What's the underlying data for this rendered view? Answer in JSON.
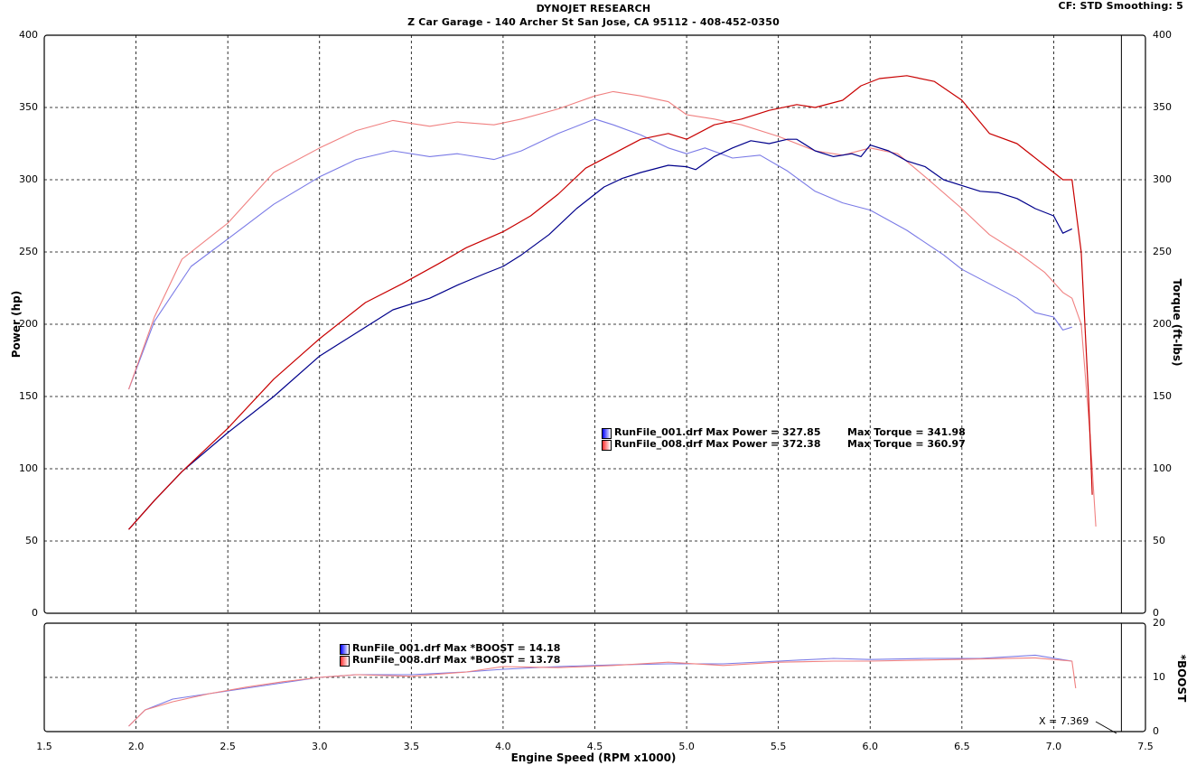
{
  "header": {
    "title": "DYNOJET RESEARCH",
    "subtitle": "Z Car Garage - 140 Archer St San Jose, CA 95112 - 408-452-0350",
    "settings": "CF: STD   Smoothing: 5"
  },
  "chart_data": [
    {
      "type": "line",
      "xlabel": "Engine Speed (RPM x1000)",
      "ylabel": "Power (hp)",
      "y2label": "Torque (ft-lbs)",
      "xlim": [
        1.5,
        7.5
      ],
      "ylim": [
        0,
        400
      ],
      "y2lim": [
        0,
        400
      ],
      "xticks": [
        "1.5",
        "2.0",
        "2.5",
        "3.0",
        "3.5",
        "4.0",
        "4.5",
        "5.0",
        "5.5",
        "6.0",
        "6.5",
        "7.0",
        "7.5"
      ],
      "yticks": [
        "0",
        "50",
        "100",
        "150",
        "200",
        "250",
        "300",
        "350",
        "400"
      ],
      "grid": true,
      "cursor_x": 7.369,
      "colors": {
        "run1_power": "#00008b",
        "run1_torque": "#7a7ae6",
        "run8_power": "#c80000",
        "run8_torque": "#f08080"
      },
      "legend": [
        {
          "swatch": "#0000ff",
          "run": "RunFile_001.drf",
          "max_power": "Max Power = 327.85",
          "max_torque": "Max Torque = 341.98"
        },
        {
          "swatch": "#ff3030",
          "run": "RunFile_008.drf",
          "max_power": "Max Power = 372.38",
          "max_torque": "Max Torque = 360.97"
        }
      ],
      "series": [
        {
          "color": "#00008b",
          "axis": "left",
          "x": [
            1.96,
            2.1,
            2.25,
            2.5,
            2.75,
            3.0,
            3.25,
            3.4,
            3.6,
            3.75,
            3.9,
            4.0,
            4.1,
            4.25,
            4.4,
            4.55,
            4.65,
            4.75,
            4.9,
            5.0,
            5.05,
            5.15,
            5.25,
            5.35,
            5.45,
            5.55,
            5.6,
            5.7,
            5.8,
            5.9,
            5.95,
            6.0,
            6.1,
            6.2,
            6.3,
            6.4,
            6.5,
            6.6,
            6.7,
            6.8,
            6.9,
            7.0,
            7.05,
            7.1
          ],
          "values": [
            58,
            78,
            98,
            125,
            150,
            178,
            198,
            210,
            218,
            227,
            235,
            240,
            248,
            262,
            280,
            295,
            301,
            305,
            310,
            309,
            307,
            316,
            322,
            327,
            325,
            328,
            328,
            320,
            316,
            318,
            316,
            324,
            320,
            313,
            309,
            300,
            296,
            292,
            291,
            287,
            280,
            275,
            263,
            266
          ]
        },
        {
          "color": "#7a7ae6",
          "axis": "right",
          "x": [
            1.96,
            2.1,
            2.3,
            2.5,
            2.75,
            3.0,
            3.2,
            3.4,
            3.6,
            3.75,
            3.95,
            4.1,
            4.3,
            4.5,
            4.6,
            4.75,
            4.9,
            5.0,
            5.1,
            5.25,
            5.4,
            5.55,
            5.7,
            5.85,
            6.0,
            6.2,
            6.4,
            6.5,
            6.65,
            6.8,
            6.9,
            7.0,
            7.05,
            7.1
          ],
          "values": [
            155,
            202,
            240,
            259,
            283,
            302,
            314,
            320,
            316,
            318,
            314,
            320,
            332,
            342,
            338,
            331,
            322,
            318,
            322,
            315,
            317,
            306,
            292,
            284,
            279,
            265,
            248,
            238,
            228,
            218,
            208,
            205,
            196,
            198
          ]
        },
        {
          "color": "#c80000",
          "axis": "left",
          "x": [
            1.96,
            2.1,
            2.25,
            2.5,
            2.75,
            3.0,
            3.25,
            3.45,
            3.65,
            3.8,
            4.0,
            4.15,
            4.3,
            4.45,
            4.6,
            4.75,
            4.9,
            5.0,
            5.15,
            5.3,
            5.45,
            5.6,
            5.7,
            5.85,
            5.95,
            6.05,
            6.2,
            6.35,
            6.5,
            6.65,
            6.8,
            6.95,
            7.05,
            7.1,
            7.15,
            7.19,
            7.21
          ],
          "values": [
            58,
            78,
            98,
            128,
            162,
            190,
            215,
            228,
            242,
            253,
            264,
            275,
            290,
            308,
            318,
            328,
            332,
            328,
            338,
            342,
            348,
            352,
            350,
            355,
            365,
            370,
            372,
            368,
            355,
            332,
            325,
            310,
            300,
            300,
            250,
            150,
            82
          ]
        },
        {
          "color": "#f08080",
          "axis": "right",
          "x": [
            1.96,
            2.1,
            2.25,
            2.5,
            2.75,
            3.0,
            3.2,
            3.4,
            3.6,
            3.75,
            3.95,
            4.1,
            4.3,
            4.5,
            4.6,
            4.75,
            4.9,
            5.0,
            5.15,
            5.3,
            5.5,
            5.7,
            5.85,
            6.0,
            6.15,
            6.3,
            6.5,
            6.65,
            6.8,
            6.95,
            7.05,
            7.1,
            7.15,
            7.2,
            7.23
          ],
          "values": [
            155,
            205,
            245,
            270,
            305,
            322,
            334,
            341,
            337,
            340,
            338,
            342,
            349,
            358,
            361,
            358,
            354,
            345,
            342,
            338,
            330,
            320,
            317,
            322,
            318,
            302,
            280,
            262,
            250,
            236,
            222,
            218,
            200,
            120,
            60
          ]
        }
      ]
    },
    {
      "type": "line",
      "ylabel": "*BOOST",
      "xlim": [
        1.5,
        7.5
      ],
      "ylim": [
        0,
        20
      ],
      "yticks": [
        "0",
        "10",
        "20"
      ],
      "grid": true,
      "legend": [
        {
          "swatch": "#0000ff",
          "text": "RunFile_001.drf Max *BOOST = 14.18"
        },
        {
          "swatch": "#ff3030",
          "text": "RunFile_008.drf Max *BOOST = 13.78"
        }
      ],
      "cursor_label": "X = 7.369",
      "series": [
        {
          "color": "#7a7ae6",
          "x": [
            1.96,
            2.05,
            2.2,
            2.4,
            2.6,
            2.8,
            3.0,
            3.2,
            3.5,
            3.8,
            4.0,
            4.3,
            4.6,
            4.9,
            5.2,
            5.5,
            5.8,
            6.0,
            6.3,
            6.6,
            6.9,
            7.1
          ],
          "values": [
            1,
            4,
            6,
            7,
            8,
            9,
            10,
            10.5,
            10.5,
            11,
            11.5,
            12,
            12.3,
            12.5,
            12.5,
            13,
            13.5,
            13.3,
            13.5,
            13.5,
            14.1,
            13
          ]
        },
        {
          "color": "#f08080",
          "x": [
            1.96,
            2.05,
            2.2,
            2.4,
            2.6,
            2.8,
            3.0,
            3.2,
            3.5,
            3.8,
            4.0,
            4.3,
            4.6,
            4.9,
            5.2,
            5.5,
            5.8,
            6.0,
            6.3,
            6.6,
            6.9,
            7.1,
            7.12
          ],
          "values": [
            1,
            4,
            5.5,
            7,
            8.2,
            9.2,
            10,
            10.5,
            10.2,
            11,
            12,
            11.8,
            12.2,
            12.8,
            12.2,
            12.8,
            13,
            13,
            13.2,
            13.4,
            13.6,
            13,
            8
          ]
        }
      ]
    }
  ]
}
